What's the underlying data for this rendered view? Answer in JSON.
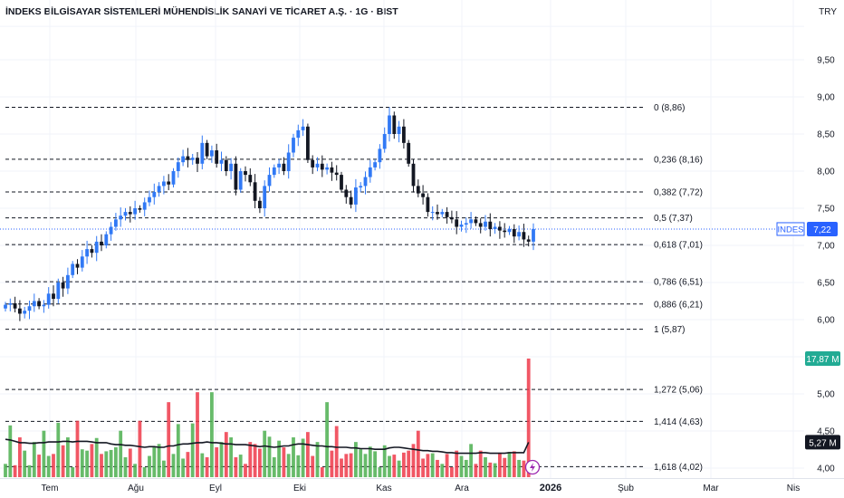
{
  "header": {
    "title": "İNDEKS BİLGİSAYAR SİSTEMLERİ MÜHENDİSLİK SANAYİ VE TİCARET A.Ş. · 1G · BIST",
    "currency": "TRY"
  },
  "chart_data": {
    "type": "candlestick",
    "symbol": "INDES",
    "last_price_label": "7,22",
    "price_axis": {
      "ticks": [
        "4,00",
        "4,50",
        "5,00",
        "5,50",
        "6,00",
        "6,50",
        "7,00",
        "7,50",
        "8,00",
        "8,50",
        "9,00",
        "9,50"
      ],
      "ylim": [
        3.95,
        10.0
      ]
    },
    "time_axis": {
      "labels": [
        "Tem",
        "Ağu",
        "Eyl",
        "Eki",
        "Kas",
        "Ara",
        "2026",
        "Şub",
        "Mar",
        "Nis"
      ],
      "bold_label": "2026"
    },
    "fibonacci": [
      {
        "label": "0 (8,86)",
        "value": 8.86
      },
      {
        "label": "0,236 (8,16)",
        "value": 8.16
      },
      {
        "label": "0,382 (7,72)",
        "value": 7.72
      },
      {
        "label": "0,5 (7,37)",
        "value": 7.37
      },
      {
        "label": "0,618 (7,01)",
        "value": 7.01
      },
      {
        "label": "0,786 (6,51)",
        "value": 6.51
      },
      {
        "label": "0,886 (6,21)",
        "value": 6.21
      },
      {
        "label": "1 (5,87)",
        "value": 5.87
      },
      {
        "label": "1,272 (5,06)",
        "value": 5.06
      },
      {
        "label": "1,414 (4,63)",
        "value": 4.63
      },
      {
        "label": "1,618 (4,02)",
        "value": 4.02
      }
    ],
    "closes": [
      6.2,
      6.22,
      6.15,
      6.08,
      6.12,
      6.18,
      6.25,
      6.18,
      6.2,
      6.35,
      6.28,
      6.5,
      6.42,
      6.6,
      6.75,
      6.7,
      6.85,
      6.95,
      6.9,
      7.05,
      7.0,
      7.15,
      7.25,
      7.35,
      7.4,
      7.45,
      7.42,
      7.5,
      7.48,
      7.58,
      7.65,
      7.72,
      7.8,
      7.86,
      7.82,
      8.0,
      8.12,
      8.2,
      8.15,
      8.18,
      8.1,
      8.38,
      8.2,
      8.28,
      8.1,
      8.15,
      8.0,
      8.1,
      7.75,
      8.0,
      7.95,
      7.85,
      7.6,
      7.5,
      7.8,
      7.95,
      8.05,
      8.1,
      8.0,
      8.25,
      8.45,
      8.55,
      8.6,
      8.15,
      8.05,
      8.1,
      8.02,
      8.05,
      7.98,
      7.95,
      7.75,
      7.65,
      7.55,
      7.78,
      7.8,
      7.92,
      8.05,
      8.12,
      8.3,
      8.5,
      8.75,
      8.5,
      8.6,
      8.38,
      8.1,
      7.8,
      7.7,
      7.65,
      7.45,
      7.45,
      7.42,
      7.45,
      7.38,
      7.35,
      7.25,
      7.28,
      7.3,
      7.35,
      7.3,
      7.25,
      7.32,
      7.22,
      7.25,
      7.2,
      7.18,
      7.22,
      7.12,
      7.18,
      7.08,
      7.05,
      7.22
    ],
    "volume": {
      "axis_max_label": "17,87 M",
      "ma_label": "5,27 M",
      "bars": [
        2.0,
        7.8,
        1.8,
        6.0,
        4.0,
        1.8,
        5.3,
        3.4,
        7.0,
        3.2,
        3.5,
        8.2,
        4.8,
        6.0,
        1.5,
        8.5,
        4.2,
        4.0,
        5.0,
        5.9,
        3.5,
        3.9,
        4.1,
        4.5,
        7.0,
        3.0,
        4.3,
        2.0,
        8.5,
        1.5,
        3.2,
        4.5,
        5.0,
        2.5,
        11.3,
        3.5,
        8.0,
        2.8,
        3.8,
        8.1,
        12.8,
        3.6,
        3.0,
        12.8,
        4.5,
        5.3,
        6.8,
        6.0,
        3.0,
        3.4,
        2.0,
        5.3,
        5.0,
        4.3,
        7.0,
        6.1,
        3.0,
        5.5,
        4.5,
        3.5,
        6.0,
        3.3,
        5.8,
        6.8,
        3.2,
        5.3,
        1.5,
        11.3,
        4.0,
        7.7,
        2.8,
        3.5,
        3.6,
        5.3,
        4.2,
        3.5,
        4.6,
        3.9,
        1.5,
        4.8,
        3.2,
        3.4,
        2.5,
        3.7,
        4.0,
        5.0,
        7.0,
        2.8,
        3.5,
        3.6,
        2.6,
        2.0,
        3.5,
        1.5,
        4.0,
        3.2,
        2.6,
        5.0,
        2.0,
        4.0,
        3.0,
        2.2,
        2.1,
        3.7,
        2.9,
        3.8,
        3.9,
        2.6,
        2.5,
        17.87
      ],
      "ma": [
        5.7,
        5.6,
        5.4,
        5.2,
        5.2,
        5.1,
        5.1,
        5.2,
        5.2,
        5.3,
        5.3,
        5.3,
        5.4,
        5.4,
        5.3,
        5.4,
        5.4,
        5.4,
        5.3,
        5.2,
        5.2,
        5.2,
        5.0,
        4.9,
        4.9,
        4.8,
        4.8,
        4.7,
        4.6,
        4.5,
        4.6,
        4.6,
        4.5,
        4.5,
        4.7,
        4.7,
        4.9,
        5.0,
        5.0,
        5.1,
        5.2,
        5.2,
        5.3,
        5.2,
        5.2,
        5.1,
        5.0,
        5.0,
        4.9,
        4.9,
        4.9,
        4.8,
        4.7,
        4.6,
        4.7,
        4.6,
        4.5,
        4.6,
        4.7,
        4.7,
        4.9,
        5.0,
        5.0,
        4.9,
        4.8,
        4.7,
        4.7,
        4.6,
        4.6,
        4.5,
        4.5,
        4.5,
        4.4,
        4.4,
        4.3,
        4.3,
        4.3,
        4.2,
        4.2,
        4.2,
        4.4,
        4.5,
        4.5,
        4.4,
        4.3,
        4.2,
        4.1,
        4.0,
        4.0,
        3.9,
        3.9,
        3.8,
        3.7,
        3.7,
        3.6,
        3.6,
        3.6,
        3.6,
        3.6,
        3.7,
        3.7,
        3.6,
        3.6,
        3.6,
        3.6,
        3.7,
        3.7,
        3.7,
        3.7,
        5.27
      ]
    }
  },
  "colors": {
    "up": "#2962ff",
    "up_candle": "#3179f5",
    "down": "#131722",
    "vol_up": "#4caf50",
    "vol_down": "#ef3a4a",
    "price_line": "#2962ff",
    "grid": "#f0f3fa",
    "dash": "#131722",
    "volume_badge": "#22ab94"
  },
  "icons": {
    "event_marker": "lightning-icon"
  }
}
